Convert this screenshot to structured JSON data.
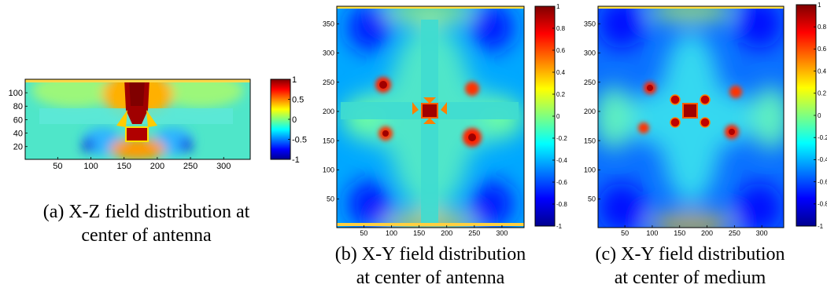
{
  "chart_data": [
    {
      "type": "heatmap",
      "panel": "a",
      "caption_lines": [
        "(a) X-Z field distribution at",
        "center of antenna"
      ],
      "title": "",
      "xlabel": "",
      "ylabel": "",
      "xlim": [
        1,
        340
      ],
      "ylim": [
        1,
        120
      ],
      "x_ticks": [
        50,
        100,
        150,
        200,
        250,
        300
      ],
      "y_ticks": [
        20,
        40,
        60,
        80,
        100
      ],
      "colorbar": {
        "min": -1,
        "max": 1,
        "ticks": [
          -1,
          -0.5,
          0,
          0.5,
          1
        ],
        "tick_labels": [
          "-1",
          "-0.5",
          "0",
          "0.5",
          "1"
        ],
        "colormap": "jet"
      },
      "features": {
        "background_value": 0.1,
        "antenna_bar": {
          "x": [
            20,
            320
          ],
          "z": [
            55,
            70
          ],
          "value": 0.0
        },
        "feed_column": {
          "x": [
            150,
            190
          ],
          "z": [
            45,
            120
          ],
          "value": 1.0
        },
        "hot_spots": [
          {
            "x": 170,
            "z": 35,
            "value": 1.0
          }
        ],
        "cold_spots": [
          {
            "x": 105,
            "z": 25,
            "value": -0.8
          },
          {
            "x": 235,
            "z": 25,
            "value": -0.8
          }
        ]
      }
    },
    {
      "type": "heatmap",
      "panel": "b",
      "caption_lines": [
        "(b) X-Y field distribution",
        "at center of antenna"
      ],
      "title": "",
      "xlabel": "",
      "ylabel": "",
      "xlim": [
        1,
        340
      ],
      "ylim": [
        1,
        380
      ],
      "x_ticks": [
        50,
        100,
        150,
        200,
        250,
        300
      ],
      "y_ticks": [
        50,
        100,
        150,
        200,
        250,
        300,
        350
      ],
      "colorbar": {
        "min": -1,
        "max": 1,
        "ticks": [
          -1,
          -0.8,
          -0.6,
          -0.4,
          -0.2,
          0,
          0.2,
          0.4,
          0.6,
          0.8,
          1
        ],
        "tick_labels": [
          "-1",
          "-0.8",
          "-0.6",
          "-0.4",
          "-0.2",
          "0",
          "0.2",
          "0.4",
          "0.6",
          "0.8",
          "1"
        ],
        "colormap": "jet"
      },
      "features": {
        "cross_arms": {
          "center": [
            170,
            200
          ],
          "half_length": 165,
          "half_width": 12,
          "value": 0.1
        },
        "center_value": 1.0,
        "hot_spots": [
          {
            "x": 90,
            "y": 250
          },
          {
            "x": 255,
            "y": 240
          },
          {
            "x": 92,
            "y": 155
          },
          {
            "x": 255,
            "y": 150
          }
        ],
        "cold_regions": [
          {
            "x": 90,
            "y": 320
          },
          {
            "x": 260,
            "y": 320
          },
          {
            "x": 90,
            "y": 80
          },
          {
            "x": 260,
            "y": 80
          },
          {
            "x": 170,
            "y": 310
          },
          {
            "x": 170,
            "y": 90
          }
        ]
      }
    },
    {
      "type": "heatmap",
      "panel": "c",
      "caption_lines": [
        "(c) X-Y field distribution",
        "at center of medium"
      ],
      "title": "",
      "xlabel": "",
      "ylabel": "",
      "xlim": [
        1,
        340
      ],
      "ylim": [
        1,
        380
      ],
      "x_ticks": [
        50,
        100,
        150,
        200,
        250,
        300
      ],
      "y_ticks": [
        50,
        100,
        150,
        200,
        250,
        300,
        350
      ],
      "colorbar": {
        "min": -1,
        "max": 1,
        "ticks": [
          -1,
          -0.8,
          -0.6,
          -0.4,
          -0.2,
          0,
          0.2,
          0.4,
          0.6,
          0.8,
          1
        ],
        "tick_labels": [
          "-1",
          "-0.8",
          "-0.6",
          "-0.4",
          "-0.2",
          "0",
          "0.2",
          "0.4",
          "0.6",
          "0.8",
          "1"
        ],
        "colormap": "jet"
      },
      "features": {
        "center_value": 1.0,
        "hot_spots": [
          {
            "x": 100,
            "y": 240
          },
          {
            "x": 245,
            "y": 235
          },
          {
            "x": 95,
            "y": 165
          },
          {
            "x": 245,
            "y": 160
          },
          {
            "x": 145,
            "y": 220
          },
          {
            "x": 195,
            "y": 220
          },
          {
            "x": 145,
            "y": 180
          },
          {
            "x": 195,
            "y": 180
          }
        ],
        "cold_regions": [
          {
            "x": 60,
            "y": 330
          },
          {
            "x": 290,
            "y": 330
          },
          {
            "x": 60,
            "y": 70
          },
          {
            "x": 290,
            "y": 70
          },
          {
            "x": 170,
            "y": 300
          },
          {
            "x": 170,
            "y": 100
          }
        ]
      }
    }
  ]
}
